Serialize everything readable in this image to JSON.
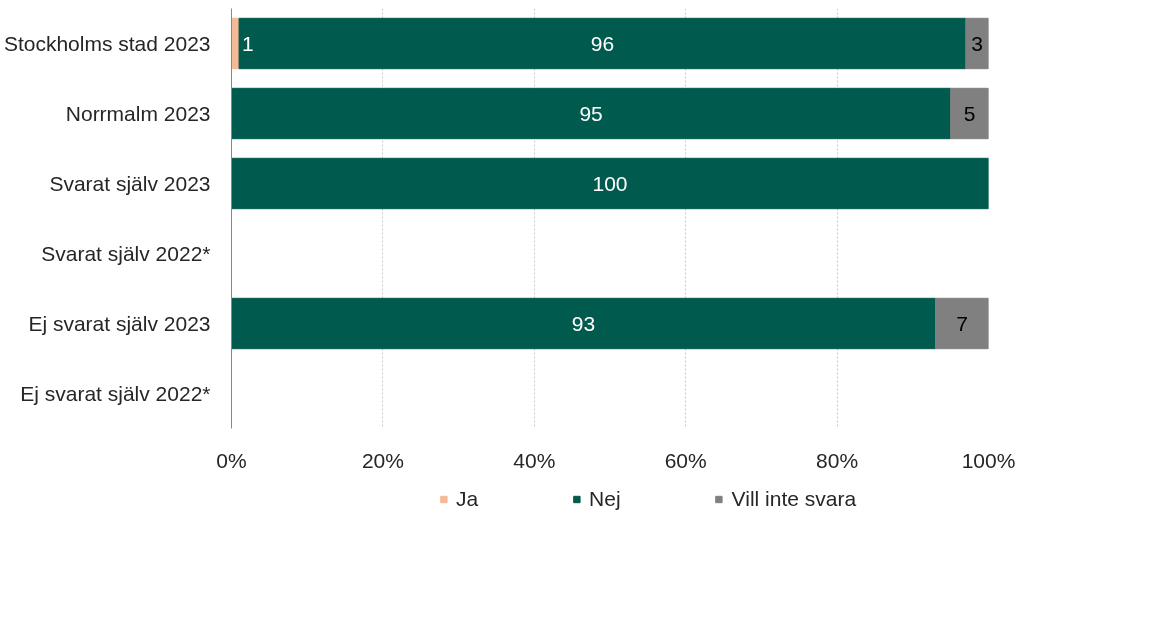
{
  "chart_data": {
    "type": "bar",
    "orientation": "horizontal",
    "stacked": true,
    "categories": [
      "Stockholms stad 2023",
      "Norrmalm 2023",
      "Svarat själv 2023",
      "Svarat själv 2022*",
      "Ej svarat själv 2023",
      "Ej svarat själv 2022*"
    ],
    "series": [
      {
        "name": "Ja",
        "color": "#f4b995",
        "values": [
          1,
          null,
          null,
          null,
          null,
          null
        ]
      },
      {
        "name": "Nej",
        "color": "#005a4e",
        "values": [
          96,
          95,
          100,
          null,
          93,
          null
        ]
      },
      {
        "name": "Vill inte svara",
        "color": "#808080",
        "values": [
          3,
          5,
          null,
          null,
          7,
          null
        ]
      }
    ],
    "xlim": [
      0,
      100
    ],
    "xticks": [
      {
        "value": 0,
        "label": "0%"
      },
      {
        "value": 20,
        "label": "20%"
      },
      {
        "value": 40,
        "label": "40%"
      },
      {
        "value": 60,
        "label": "60%"
      },
      {
        "value": 80,
        "label": "80%"
      },
      {
        "value": 100,
        "label": "100%"
      }
    ],
    "grid": "x",
    "legend": "bottom",
    "data_labels": true
  }
}
